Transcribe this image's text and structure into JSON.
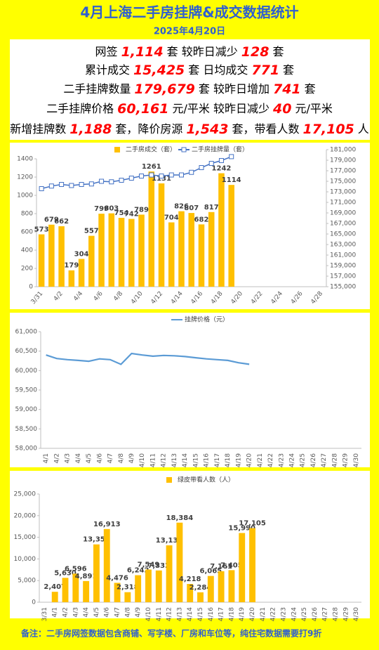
{
  "header": {
    "title": "4月上海二手房挂牌&成交数据统计",
    "subtitle": "2025年4月20日"
  },
  "stats": [
    [
      "网签",
      "1,114",
      "套 较昨日减少",
      "128",
      "套"
    ],
    [
      "累计成交",
      "15,425",
      "套 日均成交",
      "771",
      "套"
    ],
    [
      "二手挂牌数量",
      "179,679",
      "套 较昨日增加",
      "741",
      "套"
    ],
    [
      "二手挂牌价格",
      "60,161",
      "元/平米 较昨日减少",
      "40",
      "元/平米"
    ],
    [
      "新增挂牌数",
      "1,188",
      "套，降价房源",
      "1,543",
      "套，带看人数",
      "17,105",
      "人"
    ]
  ],
  "chart_data": [
    {
      "type": "bar",
      "categories": [
        "3/31",
        null,
        "4/2",
        null,
        "4/4",
        null,
        "4/6",
        null,
        "4/8",
        null,
        "4/10",
        null,
        "4/12",
        null,
        "4/14",
        null,
        "4/16",
        null,
        "4/18",
        null,
        "4/20",
        null,
        "4/22",
        null,
        "4/24",
        null,
        "4/26",
        null,
        "4/28"
      ],
      "series": [
        {
          "name": "二手房成交（套）",
          "color": "#ffc000",
          "values": [
            573,
            679,
            662,
            179,
            304,
            557,
            799,
            803,
            754,
            742,
            789,
            1261,
            1131,
            704,
            826,
            807,
            682,
            817,
            1242,
            1114,
            null,
            null,
            null,
            null,
            null,
            null,
            null,
            null,
            null
          ]
        },
        {
          "name": "二手房挂牌量（套）",
          "type": "line",
          "axis": "y2",
          "color": "#4472c4",
          "values": [
            173600,
            174100,
            174400,
            174200,
            174400,
            174500,
            175000,
            174900,
            175200,
            175600,
            176000,
            176200,
            176000,
            176200,
            176200,
            176700,
            177600,
            178400,
            178938,
            179679,
            null,
            null,
            null,
            null,
            null,
            null,
            null,
            null,
            null
          ]
        }
      ],
      "ylim": [
        0,
        1400
      ],
      "yticks": [
        0,
        200,
        400,
        600,
        800,
        1000,
        1200,
        1400
      ],
      "y2lim": [
        155000,
        181000
      ],
      "y2ticks": [
        {
          "value": 155000,
          "label": "155,000"
        },
        {
          "value": 157000,
          "label": "157,000"
        },
        {
          "value": 159000,
          "label": "159,000"
        },
        {
          "value": 161000,
          "label": "161,000"
        },
        {
          "value": 163000,
          "label": "163,000"
        },
        {
          "value": 165000,
          "label": "165,000"
        },
        {
          "value": 167000,
          "label": "167,000"
        },
        {
          "value": 169000,
          "label": "169,000"
        },
        {
          "value": 171000,
          "label": "171,000"
        },
        {
          "value": 173000,
          "label": "173,000"
        },
        {
          "value": 175000,
          "label": "175,000"
        },
        {
          "value": 177000,
          "label": "177,000"
        },
        {
          "value": 179000,
          "label": "179,000"
        },
        {
          "value": 181000,
          "label": "181,000"
        }
      ],
      "legend": "top"
    },
    {
      "type": "line",
      "categories": [
        "4/1",
        "4/2",
        "4/3",
        "4/4",
        "4/5",
        "4/6",
        "4/7",
        "4/8",
        "4/9",
        "4/10",
        "4/11",
        "4/12",
        "4/13",
        "4/14",
        "4/15",
        "4/16",
        "4/17",
        "4/18",
        "4/19",
        "4/20",
        "4/21",
        "4/22",
        "4/23",
        "4/24",
        "4/25",
        "4/26",
        "4/27",
        "4/28",
        "4/29",
        "4/30"
      ],
      "series": [
        {
          "name": "挂牌价格（元）",
          "color": "#5b9bd5",
          "values": [
            60400,
            60310,
            60280,
            60260,
            60240,
            60300,
            60280,
            60160,
            60440,
            60400,
            60370,
            60390,
            60380,
            60360,
            60330,
            60300,
            60280,
            60260,
            60201,
            60161,
            null,
            null,
            null,
            null,
            null,
            null,
            null,
            null,
            null,
            null
          ]
        }
      ],
      "ylim": [
        58000,
        61000
      ],
      "yticks": [
        {
          "value": 58000,
          "label": "58,000"
        },
        {
          "value": 58500,
          "label": "58,500"
        },
        {
          "value": 59000,
          "label": "59,000"
        },
        {
          "value": 59500,
          "label": "59,500"
        },
        {
          "value": 60000,
          "label": "60,000"
        },
        {
          "value": 60500,
          "label": "60,500"
        },
        {
          "value": 61000,
          "label": "61,000"
        }
      ],
      "legend": "top"
    },
    {
      "type": "bar",
      "categories": [
        "3/31",
        "4/1",
        "4/2",
        "4/3",
        "4/4",
        "4/5",
        "4/6",
        "4/7",
        "4/8",
        "4/9",
        "4/10",
        "4/11",
        "4/12",
        "4/13",
        "4/14",
        "4/15",
        "4/16",
        "4/17",
        "4/18",
        "4/19",
        "4/20",
        "4/21",
        "4/22",
        "4/23",
        "4/24",
        "4/25",
        "4/26",
        "4/27",
        "4/28",
        "4/29",
        "4/30"
      ],
      "series": [
        {
          "name": "绿皮带看人数（人）",
          "color": "#ffc000",
          "values": [
            null,
            2407,
            5630,
            6596,
            4891,
            13355,
            16913,
            4476,
            2318,
            6242,
            7549,
            7332,
            13138,
            18384,
            4218,
            2284,
            6065,
            7161,
            7405,
            15990,
            17105,
            null,
            null,
            null,
            null,
            null,
            null,
            null,
            null,
            null,
            null
          ],
          "value_labels": [
            null,
            "2,407",
            "5,630",
            "6,596",
            "4,891",
            "13,355",
            "16,913",
            "4,476",
            "2,318",
            "6,242",
            "7,549",
            "7,332",
            "13,138",
            "18,384",
            "4,218",
            "2,284",
            "6,065",
            "7,161",
            "7,405",
            "15,990",
            "17,105",
            null,
            null,
            null,
            null,
            null,
            null,
            null,
            null,
            null,
            null
          ]
        }
      ],
      "ylim": [
        0,
        25000
      ],
      "yticks": [
        0,
        {
          "value": 5000,
          "label": "5,000"
        },
        {
          "value": 10000,
          "label": "10,000"
        },
        {
          "value": 15000,
          "label": "15,000"
        },
        {
          "value": 20000,
          "label": "20,000"
        },
        {
          "value": 25000,
          "label": "25,000"
        }
      ],
      "legend": "top"
    }
  ],
  "footer": "备注：二手房网签数据包含商铺、写字楼、厂房和车位等，纯住宅数据需要打9折"
}
